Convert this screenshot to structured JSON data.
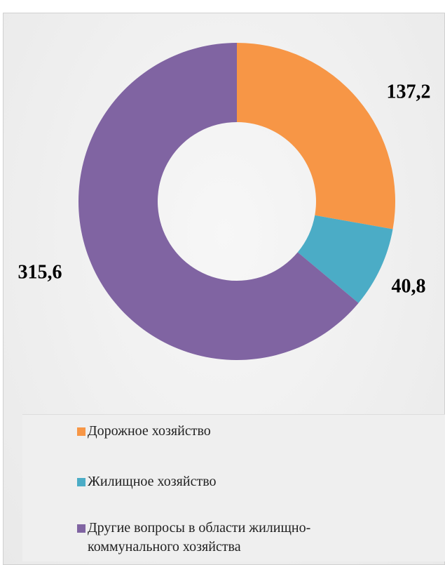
{
  "chart_data": {
    "type": "pie",
    "categories": [
      "Дорожное хозяйство",
      "Жилищное хозяйство",
      "Другие вопросы в области жилищно-коммунального хозяйства"
    ],
    "values": [
      137.2,
      40.8,
      315.6
    ],
    "value_labels": [
      "137,2",
      "40,8",
      "315,6"
    ],
    "colors": [
      "#f79646",
      "#4bacc6",
      "#8064a2"
    ],
    "donut": true,
    "legend": "bottom"
  }
}
